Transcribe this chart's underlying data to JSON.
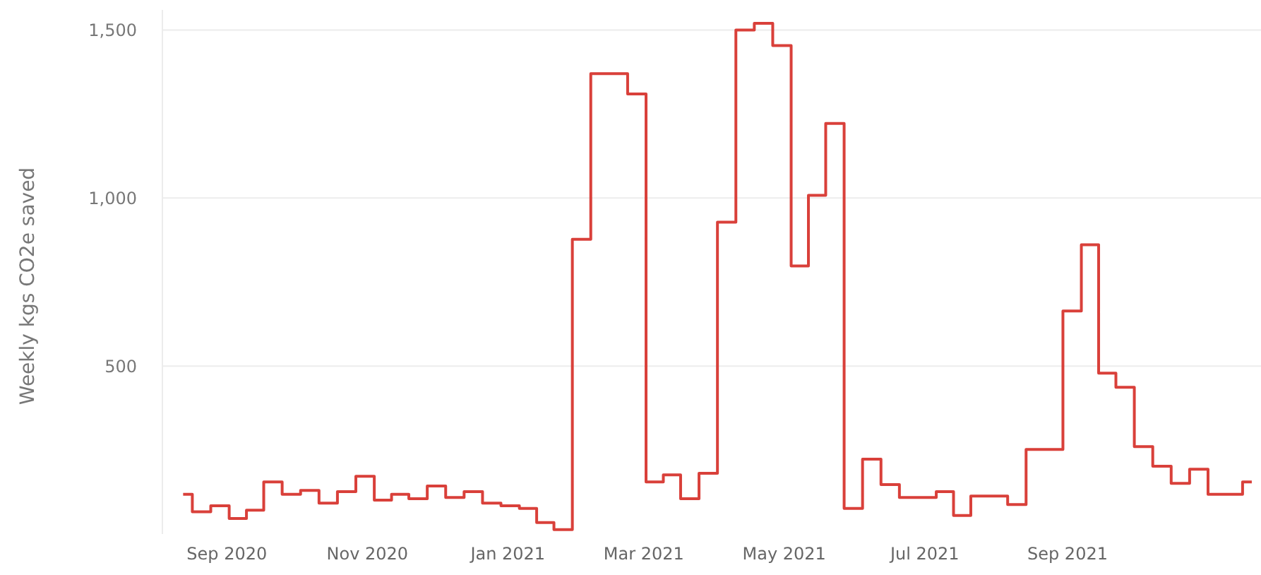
{
  "chart_data": {
    "type": "step",
    "ylabel": "Weekly kgs CO2e saved",
    "x": [
      "2020-08-13",
      "2020-08-21",
      "2020-08-29",
      "2020-09-06",
      "2020-09-13",
      "2020-09-21",
      "2020-09-29",
      "2020-10-07",
      "2020-10-15",
      "2020-10-23",
      "2020-10-31",
      "2020-11-08",
      "2020-11-15",
      "2020-11-23",
      "2020-12-01",
      "2020-12-09",
      "2020-12-17",
      "2020-12-25",
      "2021-01-02",
      "2021-01-10",
      "2021-01-17",
      "2021-01-25",
      "2021-02-02",
      "2021-02-10",
      "2021-02-18",
      "2021-02-26",
      "2021-03-06",
      "2021-03-13",
      "2021-03-21",
      "2021-03-29",
      "2021-04-06",
      "2021-04-14",
      "2021-04-22",
      "2021-04-30",
      "2021-05-08",
      "2021-05-15",
      "2021-05-23",
      "2021-05-31",
      "2021-06-08",
      "2021-06-16",
      "2021-06-24",
      "2021-07-02",
      "2021-07-10",
      "2021-07-17",
      "2021-07-25",
      "2021-08-02",
      "2021-08-10",
      "2021-08-18",
      "2021-08-26",
      "2021-09-03",
      "2021-09-11",
      "2021-09-18",
      "2021-09-26",
      "2021-10-04",
      "2021-10-12",
      "2021-10-20",
      "2021-10-28",
      "2021-11-05",
      "2021-11-12",
      "2021-11-20"
    ],
    "series": [
      {
        "color": "#d9403a",
        "values": [
          118,
          66,
          84,
          46,
          71,
          155,
          118,
          130,
          92,
          126,
          172,
          101,
          118,
          105,
          143,
          109,
          126,
          92,
          84,
          76,
          34,
          13,
          877,
          1370,
          1370,
          1310,
          155,
          176,
          105,
          181,
          928,
          1500,
          1520,
          1454,
          798,
          1008,
          1222,
          76,
          223,
          147,
          109,
          109,
          126,
          55,
          113,
          113,
          88,
          252,
          252,
          664,
          861,
          479,
          437,
          260,
          202,
          151,
          193,
          118,
          118,
          155
        ]
      }
    ],
    "xlim": [
      "2020-08-04",
      "2021-11-24"
    ],
    "xticks": [
      {
        "value": "2020-09-01",
        "label": "Sep 2020"
      },
      {
        "value": "2020-11-01",
        "label": "Nov 2020"
      },
      {
        "value": "2021-01-01",
        "label": "Jan 2021"
      },
      {
        "value": "2021-03-01",
        "label": "Mar 2021"
      },
      {
        "value": "2021-05-01",
        "label": "May 2021"
      },
      {
        "value": "2021-07-01",
        "label": "Jul 2021"
      },
      {
        "value": "2021-09-01",
        "label": "Sep 2021"
      }
    ],
    "ylim": [
      0,
      1560
    ],
    "yticks": [
      {
        "value": 500,
        "label": "500"
      },
      {
        "value": 1000,
        "label": "1,000"
      },
      {
        "value": 1500,
        "label": "1,500"
      }
    ],
    "grid": "y"
  }
}
